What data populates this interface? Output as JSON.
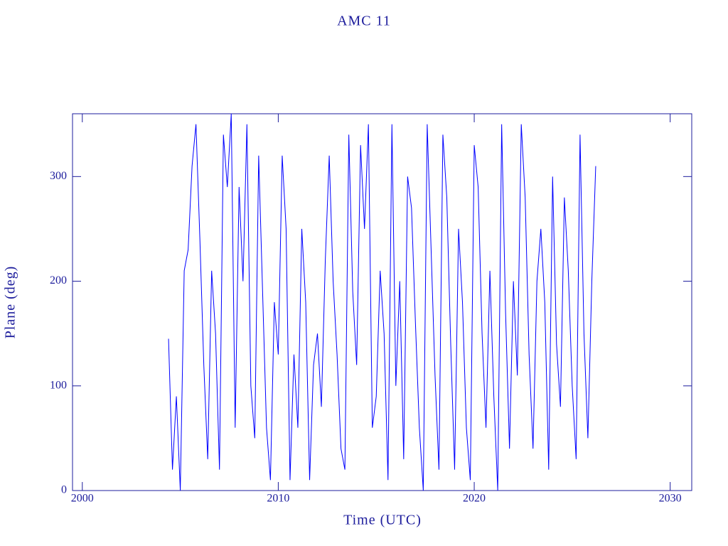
{
  "chart_data": {
    "type": "line",
    "title": "AMC 11",
    "x_label": "Time (UTC)",
    "y_label": "Plane (deg)",
    "color": "#0000ff",
    "grid": false,
    "xlim": [
      1999.5,
      2031.1
    ],
    "xticks": [
      2000,
      2010,
      2020,
      2030
    ],
    "ylim": [
      0,
      360
    ],
    "yticks": [
      0,
      100,
      200,
      300
    ],
    "x": [
      2004.4,
      2004.6,
      2004.8,
      2005.0,
      2005.2,
      2005.4,
      2005.6,
      2005.8,
      2006.0,
      2006.2,
      2006.4,
      2006.6,
      2006.8,
      2007.0,
      2007.2,
      2007.4,
      2007.6,
      2007.8,
      2008.0,
      2008.2,
      2008.4,
      2008.6,
      2008.8,
      2009.0,
      2009.2,
      2009.4,
      2009.6,
      2009.8,
      2010.0,
      2010.2,
      2010.4,
      2010.6,
      2010.8,
      2011.0,
      2011.2,
      2011.4,
      2011.6,
      2011.8,
      2012.0,
      2012.2,
      2012.4,
      2012.6,
      2012.8,
      2013.0,
      2013.2,
      2013.4,
      2013.6,
      2013.8,
      2014.0,
      2014.2,
      2014.4,
      2014.6,
      2014.8,
      2015.0,
      2015.2,
      2015.4,
      2015.6,
      2015.8,
      2016.0,
      2016.2,
      2016.4,
      2016.6,
      2016.8,
      2017.0,
      2017.2,
      2017.4,
      2017.6,
      2017.8,
      2018.0,
      2018.2,
      2018.4,
      2018.6,
      2018.8,
      2019.0,
      2019.2,
      2019.4,
      2019.6,
      2019.8,
      2020.0,
      2020.2,
      2020.4,
      2020.6,
      2020.8,
      2021.0,
      2021.2,
      2021.4,
      2021.6,
      2021.8,
      2022.0,
      2022.2,
      2022.4,
      2022.6,
      2022.8,
      2023.0,
      2023.2,
      2023.4,
      2023.6,
      2023.8,
      2024.0,
      2024.2,
      2024.4,
      2024.6,
      2024.8,
      2025.0,
      2025.2,
      2025.4,
      2025.6,
      2025.8,
      2026.0,
      2026.2
    ],
    "values": [
      145,
      20,
      90,
      0,
      210,
      230,
      310,
      350,
      240,
      120,
      30,
      210,
      150,
      20,
      340,
      290,
      360,
      60,
      290,
      200,
      350,
      100,
      50,
      320,
      190,
      60,
      10,
      180,
      130,
      320,
      250,
      10,
      130,
      60,
      250,
      180,
      10,
      120,
      150,
      80,
      220,
      320,
      200,
      130,
      40,
      20,
      340,
      190,
      120,
      330,
      250,
      350,
      60,
      90,
      210,
      150,
      10,
      350,
      100,
      200,
      30,
      300,
      270,
      160,
      60,
      0,
      350,
      230,
      110,
      20,
      340,
      280,
      140,
      20,
      250,
      180,
      60,
      10,
      330,
      290,
      150,
      60,
      210,
      90,
      0,
      350,
      170,
      40,
      200,
      110,
      350,
      280,
      130,
      40,
      200,
      250,
      180,
      20,
      300,
      140,
      80,
      280,
      210,
      100,
      30,
      340,
      150,
      50,
      200,
      310
    ]
  }
}
